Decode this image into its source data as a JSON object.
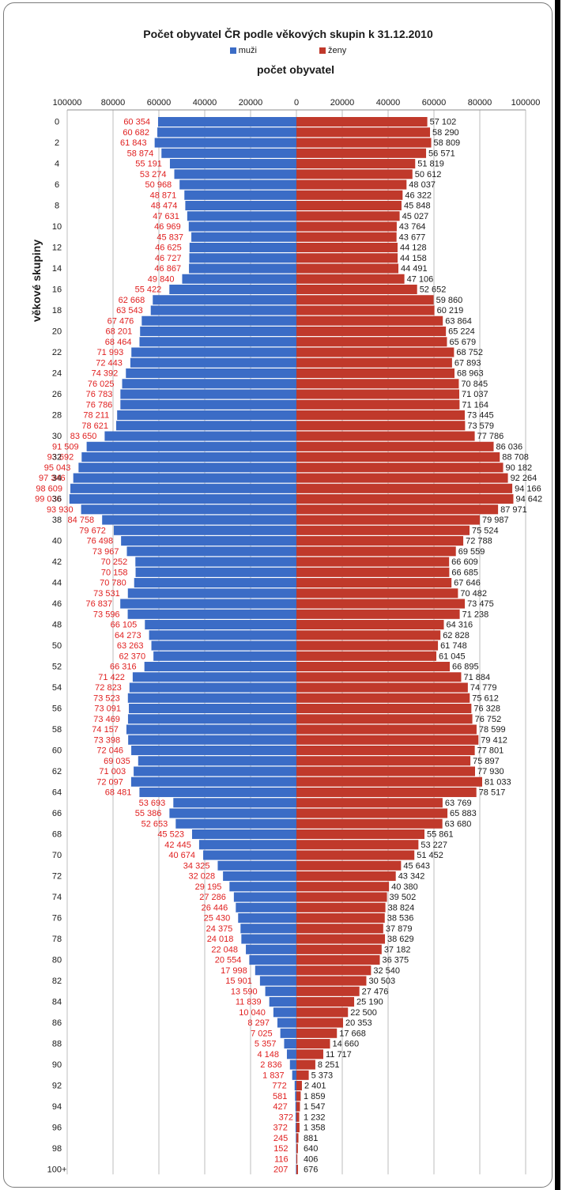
{
  "chart_data": {
    "type": "bar",
    "orientation": "horizontal-population-pyramid",
    "title": "Počet obyvatel ČR podle věkových skupin k 31.12.2010",
    "xlabel": "počet obyvatel",
    "ylabel": "věkové skupiny",
    "xlim": [
      -100000,
      100000
    ],
    "x_ticks": [
      "100000",
      "80000",
      "60000",
      "40000",
      "20000",
      "0",
      "20000",
      "40000",
      "60000",
      "80000",
      "100000"
    ],
    "categories": [
      "0",
      "1",
      "2",
      "3",
      "4",
      "5",
      "6",
      "7",
      "8",
      "9",
      "10",
      "11",
      "12",
      "13",
      "14",
      "15",
      "16",
      "17",
      "18",
      "19",
      "20",
      "21",
      "22",
      "23",
      "24",
      "25",
      "26",
      "27",
      "28",
      "29",
      "30",
      "31",
      "32",
      "33",
      "34",
      "35",
      "36",
      "37",
      "38",
      "39",
      "40",
      "41",
      "42",
      "43",
      "44",
      "45",
      "46",
      "47",
      "48",
      "49",
      "50",
      "51",
      "52",
      "53",
      "54",
      "55",
      "56",
      "57",
      "58",
      "59",
      "60",
      "61",
      "62",
      "63",
      "64",
      "65",
      "66",
      "67",
      "68",
      "69",
      "70",
      "71",
      "72",
      "73",
      "74",
      "75",
      "76",
      "77",
      "78",
      "79",
      "80",
      "81",
      "82",
      "83",
      "84",
      "85",
      "86",
      "87",
      "88",
      "89",
      "90",
      "91",
      "92",
      "93",
      "94",
      "95",
      "96",
      "97",
      "98",
      "99",
      "100+"
    ],
    "y_tick_labels": [
      "0",
      "2",
      "4",
      "6",
      "8",
      "10",
      "12",
      "14",
      "16",
      "18",
      "20",
      "22",
      "24",
      "26",
      "28",
      "30",
      "32",
      "34",
      "36",
      "38",
      "40",
      "42",
      "44",
      "46",
      "48",
      "50",
      "52",
      "54",
      "56",
      "58",
      "60",
      "62",
      "64",
      "66",
      "68",
      "70",
      "72",
      "74",
      "76",
      "78",
      "80",
      "82",
      "84",
      "86",
      "88",
      "90",
      "92",
      "94",
      "96",
      "98",
      "100+"
    ],
    "grid": true,
    "legend_position": "top-center",
    "series": [
      {
        "name": "muži",
        "color": "#3B6CC6",
        "label_color": "#E02020",
        "values": [
          60354,
          60682,
          61843,
          58874,
          55191,
          53274,
          50968,
          48871,
          48474,
          47631,
          46969,
          45837,
          46625,
          46727,
          46867,
          49840,
          55422,
          62668,
          63543,
          67476,
          68201,
          68464,
          71993,
          72443,
          74392,
          76025,
          76783,
          76786,
          78211,
          78621,
          83650,
          91509,
          93692,
          95043,
          97346,
          98609,
          99036,
          93930,
          84758,
          79672,
          76498,
          73967,
          70252,
          70158,
          70780,
          73531,
          76837,
          73596,
          66105,
          64273,
          63263,
          62370,
          66316,
          71422,
          72823,
          73523,
          73091,
          73469,
          74157,
          73398,
          72046,
          69035,
          71003,
          72097,
          68481,
          53693,
          55386,
          52653,
          45523,
          42445,
          40674,
          34325,
          32028,
          29195,
          27286,
          26446,
          25430,
          24375,
          24018,
          22048,
          20554,
          17998,
          15901,
          13590,
          11839,
          10040,
          8297,
          7025,
          5357,
          4148,
          2836,
          1837,
          772,
          581,
          427,
          372,
          372,
          245,
          152,
          116,
          207
        ],
        "labels": [
          "60 354",
          "60 682",
          "61 843",
          "58 874",
          "55 191",
          "53 274",
          "50 968",
          "48 871",
          "48 474",
          "47 631",
          "46 969",
          "45 837",
          "46 625",
          "46 727",
          "46 867",
          "49 840",
          "55 422",
          "62 668",
          "63 543",
          "67 476",
          "68 201",
          "68 464",
          "71 993",
          "72 443",
          "74 392",
          "76 025",
          "76 783",
          "76 786",
          "78 211",
          "78 621",
          "83 650",
          "91 509",
          "93 692",
          "95 043",
          "97 346",
          "98 609",
          "99 036",
          "93 930",
          "84 758",
          "79 672",
          "76 498",
          "73 967",
          "70 252",
          "70 158",
          "70 780",
          "73 531",
          "76 837",
          "73 596",
          "66 105",
          "64 273",
          "63 263",
          "62 370",
          "66 316",
          "71 422",
          "72 823",
          "73 523",
          "73 091",
          "73 469",
          "74 157",
          "73 398",
          "72 046",
          "69 035",
          "71 003",
          "72 097",
          "68 481",
          "53 693",
          "55 386",
          "52 653",
          "45 523",
          "42 445",
          "40 674",
          "34 325",
          "32 028",
          "29 195",
          "27 286",
          "26 446",
          "25 430",
          "24 375",
          "24 018",
          "22 048",
          "20 554",
          "17 998",
          "15 901",
          "13 590",
          "11 839",
          "10 040",
          "8 297",
          "7 025",
          "5 357",
          "4 148",
          "2 836",
          "1 837",
          "772",
          "581",
          "427",
          "",
          "372",
          "245",
          "152",
          "116",
          "207"
        ]
      },
      {
        "name": "ženy",
        "color": "#C0392B",
        "label_color": "#1a1a1a",
        "values": [
          57102,
          58290,
          58809,
          56571,
          51819,
          50612,
          48037,
          46322,
          45848,
          45027,
          43764,
          43677,
          44128,
          44158,
          44491,
          47106,
          52652,
          59860,
          60219,
          63864,
          65224,
          65679,
          68752,
          67893,
          68963,
          70845,
          71037,
          71164,
          73445,
          73579,
          77786,
          86036,
          88708,
          90182,
          92264,
          94166,
          94642,
          87971,
          79987,
          75524,
          72788,
          69559,
          66609,
          66685,
          67646,
          70482,
          73475,
          71238,
          64316,
          62828,
          61748,
          61045,
          66895,
          71884,
          74779,
          75612,
          76328,
          76752,
          78599,
          79412,
          77801,
          75897,
          77930,
          81033,
          78517,
          63769,
          65883,
          63680,
          55861,
          53227,
          51452,
          45643,
          43342,
          40380,
          39502,
          38824,
          38536,
          37879,
          38629,
          37182,
          36375,
          32540,
          30503,
          27476,
          25190,
          22500,
          20353,
          17668,
          14660,
          11717,
          8251,
          5373,
          2401,
          1859,
          1547,
          1232,
          1358,
          881,
          640,
          406,
          676
        ],
        "labels": [
          "57 102",
          "58 290",
          "58 809",
          "56 571",
          "51 819",
          "50 612",
          "48 037",
          "46 322",
          "45 848",
          "45 027",
          "43 764",
          "43 677",
          "44 128",
          "44 158",
          "44 491",
          "47 106",
          "52 652",
          "59 860",
          "60 219",
          "63 864",
          "65 224",
          "65 679",
          "68 752",
          "67 893",
          "68 963",
          "70 845",
          "71 037",
          "71 164",
          "73 445",
          "73 579",
          "77 786",
          "86 036",
          "88 708",
          "90 182",
          "92 264",
          "94 166",
          "94 642",
          "87 971",
          "79 987",
          "75 524",
          "72 788",
          "69 559",
          "66 609",
          "66 685",
          "67 646",
          "70 482",
          "73 475",
          "71 238",
          "64 316",
          "62 828",
          "61 748",
          "61 045",
          "66 895",
          "71 884",
          "74 779",
          "75 612",
          "76 328",
          "76 752",
          "78 599",
          "79 412",
          "77 801",
          "75 897",
          "77 930",
          "81 033",
          "78 517",
          "63 769",
          "65 883",
          "63 680",
          "55 861",
          "53 227",
          "51 452",
          "45 643",
          "43 342",
          "40 380",
          "39 502",
          "38 824",
          "38 536",
          "37 879",
          "38 629",
          "37 182",
          "36 375",
          "32 540",
          "30 503",
          "27 476",
          "25 190",
          "22 500",
          "20 353",
          "17 668",
          "14 660",
          "11 717",
          "8 251",
          "5 373",
          "2 401",
          "1 859",
          "1 547",
          "1 232",
          "1 358",
          "881",
          "640",
          "406",
          "676"
        ],
        "extra_labels": [
          "372"
        ]
      }
    ]
  }
}
